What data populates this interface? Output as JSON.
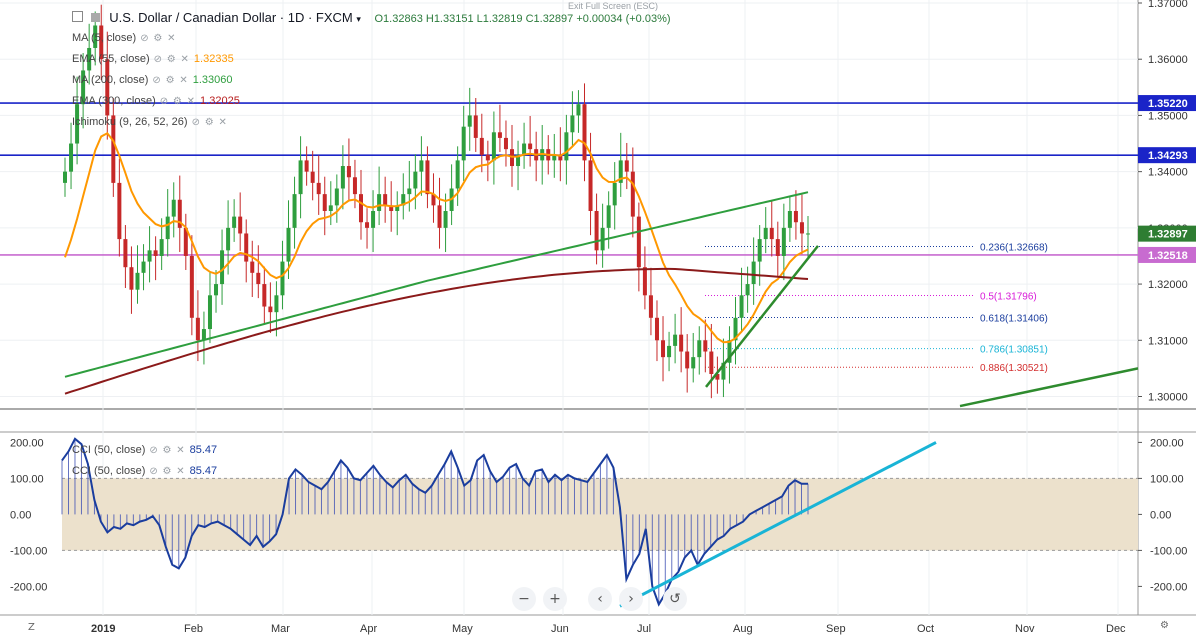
{
  "header": {
    "symbol": "U.S. Dollar / Canadian Dollar · 1D · FXCM",
    "ohlc": "O1.32863  H1.33151  L1.32819  C1.32897  +0.00034 (+0.03%)",
    "exit_fullscreen": "Exit Full Screen (ESC)"
  },
  "indicators": [
    {
      "label": "MA (5, close)",
      "value": "",
      "color": "#2962ff"
    },
    {
      "label": "EMA (55, close)",
      "value": "1.32335",
      "color": "#ff9800"
    },
    {
      "label": "MA (200, close)",
      "value": "1.33060",
      "color": "#2e9e3e"
    },
    {
      "label": "EMA (300, close)",
      "value": "1.32025",
      "color": "#b71c1c"
    },
    {
      "label": "Ichimoku (9, 26, 52, 26)",
      "value": "",
      "color": "#2962ff"
    }
  ],
  "lower_indicators": [
    {
      "label": "CCI (50, close)",
      "value": "85.47",
      "color": "#1a3d9e"
    },
    {
      "label": "CCI (50, close)",
      "value": "85.47",
      "color": "#1a3d9e"
    }
  ],
  "colors": {
    "up": "#26a69a",
    "bullish_candle": "#2e9e3e",
    "bearish_candle": "#c62828",
    "ema55": "#ff9800",
    "ma200": "#2e9e3e",
    "ema300": "#8b1a1a",
    "hline": "#1a24c8",
    "fib_line": "#c86bd0",
    "cci": "#1a3d9e",
    "trend": "#2e8b2e",
    "cci_trend": "#19b4d6",
    "band": "#ece1cc"
  },
  "nav_buttons": [
    "−",
    "+",
    "‹",
    "›",
    "↺"
  ],
  "chart_data": [
    {
      "type": "candlestick",
      "title": "U.S. Dollar / Canadian Dollar · 1D · FXCM",
      "x_labels": [
        "2019",
        "Feb",
        "Mar",
        "Apr",
        "May",
        "Jun",
        "Jul",
        "Aug",
        "Sep",
        "Oct",
        "Nov",
        "Dec"
      ],
      "y_ticks": [
        "1.37000",
        "1.36000",
        "1.35000",
        "1.34000",
        "1.33000",
        "1.32000",
        "1.31000",
        "1.30000"
      ],
      "ylim": [
        1.298,
        1.37
      ],
      "horizontal_lines": [
        {
          "label": "1.35220",
          "value": 1.3522
        },
        {
          "label": "1.34293",
          "value": 1.34293
        }
      ],
      "price_labels": [
        {
          "label": "1.32897",
          "value": 1.32897,
          "color": "#2e7d32"
        },
        {
          "label": "1.32518",
          "value": 1.32518,
          "color": "#c86bd0"
        }
      ],
      "fibonacci": [
        {
          "label": "0.236(1.32668)",
          "value": 1.32668,
          "color": "#1a3d9e"
        },
        {
          "label": "0.5(1.31796)",
          "value": 1.31796,
          "color": "#d81bd8"
        },
        {
          "label": "0.618(1.31406)",
          "value": 1.31406,
          "color": "#1a3d9e"
        },
        {
          "label": "0.786(1.30851)",
          "value": 1.30851,
          "color": "#19b4d6"
        },
        {
          "label": "0.886(1.30521)",
          "value": 1.30521,
          "color": "#d32f2f"
        }
      ],
      "closes": [
        1.34,
        1.345,
        1.352,
        1.358,
        1.362,
        1.366,
        1.36,
        1.35,
        1.338,
        1.328,
        1.323,
        1.319,
        1.322,
        1.324,
        1.326,
        1.325,
        1.328,
        1.332,
        1.335,
        1.33,
        1.325,
        1.314,
        1.31,
        1.312,
        1.318,
        1.32,
        1.326,
        1.33,
        1.332,
        1.329,
        1.324,
        1.322,
        1.32,
        1.316,
        1.315,
        1.318,
        1.324,
        1.33,
        1.336,
        1.342,
        1.34,
        1.338,
        1.336,
        1.333,
        1.334,
        1.337,
        1.341,
        1.339,
        1.336,
        1.331,
        1.33,
        1.333,
        1.336,
        1.334,
        1.333,
        1.334,
        1.336,
        1.337,
        1.34,
        1.342,
        1.336,
        1.334,
        1.33,
        1.333,
        1.337,
        1.342,
        1.348,
        1.35,
        1.346,
        1.343,
        1.342,
        1.347,
        1.346,
        1.344,
        1.341,
        1.343,
        1.345,
        1.344,
        1.342,
        1.344,
        1.342,
        1.343,
        1.342,
        1.347,
        1.35,
        1.352,
        1.342,
        1.333,
        1.326,
        1.33,
        1.334,
        1.338,
        1.342,
        1.34,
        1.332,
        1.323,
        1.318,
        1.314,
        1.31,
        1.307,
        1.309,
        1.311,
        1.308,
        1.305,
        1.307,
        1.31,
        1.308,
        1.304,
        1.303,
        1.306,
        1.31,
        1.314,
        1.318,
        1.32,
        1.324,
        1.328,
        1.33,
        1.328,
        1.325,
        1.33,
        1.333,
        1.331,
        1.329,
        1.329
      ]
    },
    {
      "type": "line",
      "title": "CCI (50, close)",
      "y_ticks": [
        "200.00",
        "100.00",
        "0.00",
        "-100.00",
        "-200.00"
      ],
      "ylim": [
        -260,
        215
      ],
      "values": [
        150,
        175,
        210,
        195,
        140,
        40,
        -20,
        -50,
        -35,
        -40,
        -25,
        -30,
        -20,
        -15,
        -5,
        -30,
        -90,
        -140,
        -150,
        -120,
        -60,
        -30,
        -35,
        -25,
        -20,
        -30,
        -40,
        -55,
        -70,
        -85,
        -60,
        -90,
        -75,
        -55,
        0,
        100,
        125,
        110,
        90,
        80,
        70,
        90,
        120,
        150,
        130,
        100,
        95,
        115,
        135,
        110,
        90,
        75,
        95,
        110,
        85,
        70,
        60,
        80,
        110,
        140,
        175,
        130,
        80,
        95,
        150,
        165,
        120,
        90,
        105,
        130,
        140,
        100,
        80,
        120,
        125,
        90,
        110,
        95,
        110,
        100,
        95,
        90,
        115,
        140,
        165,
        130,
        20,
        -180,
        -140,
        -110,
        -40,
        -200,
        -250,
        -220,
        -180,
        -160,
        -120,
        -100,
        -140,
        -110,
        -90,
        -70,
        -60,
        -40,
        -30,
        -20,
        0,
        10,
        20,
        30,
        40,
        50,
        80,
        95,
        85,
        85
      ],
      "band": [
        -100,
        100
      ]
    }
  ]
}
